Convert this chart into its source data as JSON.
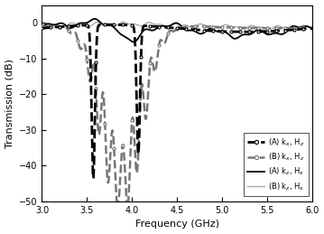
{
  "xlabel": "Frequency (GHz)",
  "ylabel": "Transmission (dB)",
  "xlim": [
    3.0,
    6.0
  ],
  "ylim": [
    -50,
    5
  ],
  "xticks": [
    3.0,
    3.5,
    4.0,
    4.5,
    5.0,
    5.5,
    6.0
  ],
  "yticks": [
    0,
    -10,
    -20,
    -30,
    -40,
    -50
  ],
  "color_A_kx": "black",
  "color_B_kx": "#777777",
  "color_A_kz": "black",
  "color_B_kz": "#aaaaaa",
  "bg_color": "white"
}
